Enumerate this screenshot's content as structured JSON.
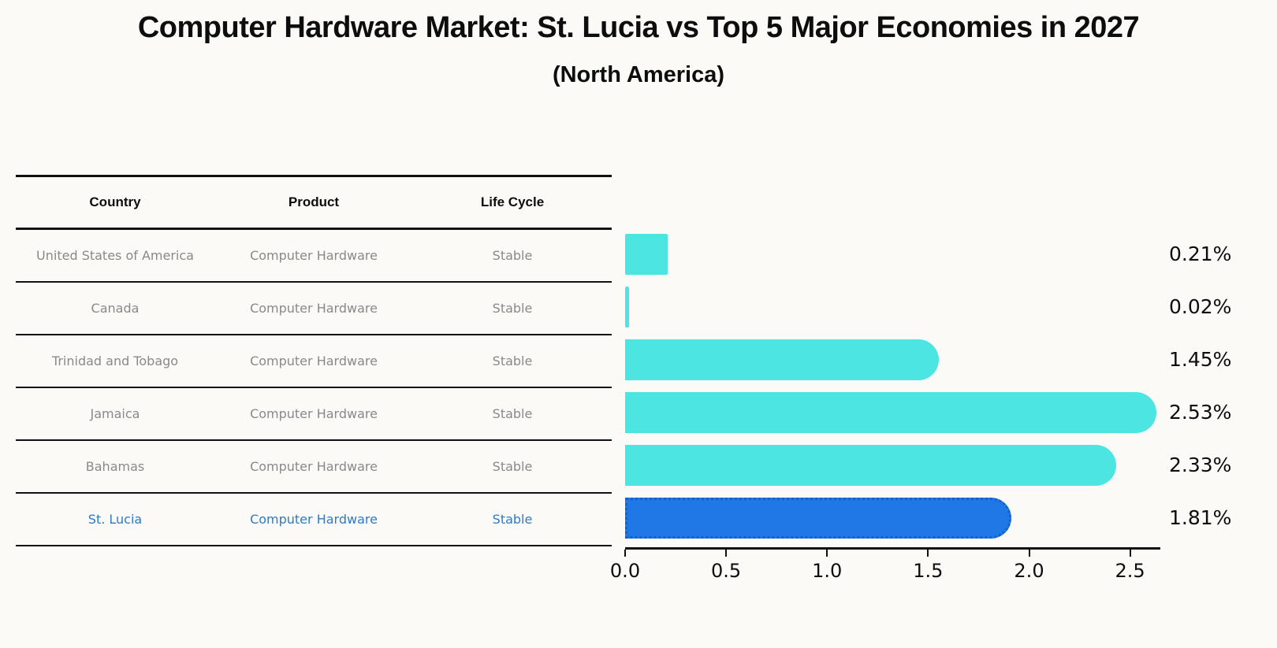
{
  "title": "Computer Hardware Market: St. Lucia vs Top 5 Major Economies in 2027",
  "subtitle": "(North America)",
  "table": {
    "columns": [
      "Country",
      "Product",
      "Life Cycle"
    ],
    "rows": [
      {
        "country": "United States of America",
        "product": "Computer Hardware",
        "life_cycle": "Stable",
        "highlighted": false
      },
      {
        "country": "Canada",
        "product": "Computer Hardware",
        "life_cycle": "Stable",
        "highlighted": false
      },
      {
        "country": "Trinidad and Tobago",
        "product": "Computer Hardware",
        "life_cycle": "Stable",
        "highlighted": false
      },
      {
        "country": "Jamaica",
        "product": "Computer Hardware",
        "life_cycle": "Stable",
        "highlighted": false
      },
      {
        "country": "Bahamas",
        "product": "Computer Hardware",
        "life_cycle": "Stable",
        "highlighted": false
      },
      {
        "country": "St. Lucia",
        "product": "Computer Hardware",
        "life_cycle": "Stable",
        "highlighted": true
      }
    ]
  },
  "chart_data": {
    "type": "bar",
    "orientation": "horizontal",
    "title": "Computer Hardware Market: St. Lucia vs Top 5 Major Economies in 2027",
    "subtitle": "(North America)",
    "categories": [
      "United States of America",
      "Canada",
      "Trinidad and Tobago",
      "Jamaica",
      "Bahamas",
      "St. Lucia"
    ],
    "values": [
      0.21,
      0.02,
      1.45,
      2.53,
      2.33,
      1.81
    ],
    "value_labels": [
      "0.21%",
      "0.02%",
      "1.45%",
      "2.53%",
      "2.33%",
      "1.81%"
    ],
    "x_ticks": [
      0.0,
      0.5,
      1.0,
      1.5,
      2.0,
      2.5
    ],
    "x_tick_labels": [
      "0.0",
      "0.5",
      "1.0",
      "1.5",
      "2.0",
      "2.5"
    ],
    "xlim": [
      0,
      2.65
    ],
    "grid": false,
    "legend": false,
    "highlight_index": 5,
    "colors": {
      "bar": "#4be6e2",
      "highlight_bar": "#1f78e6",
      "highlight_border": "#1660ce",
      "highlight_text": "#2b7bc9",
      "row_text": "#898989",
      "header_text": "#0d0d0d",
      "axis": "#111111"
    }
  }
}
